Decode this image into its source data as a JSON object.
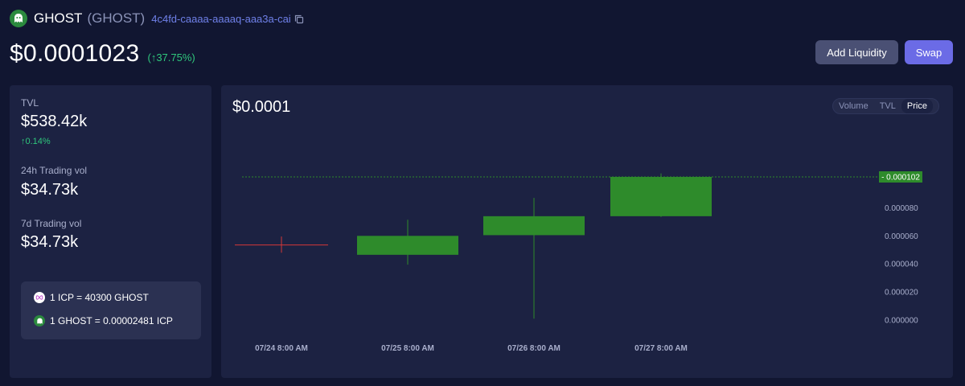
{
  "header": {
    "name": "GHOST",
    "symbol": "(GHOST)",
    "canister_id": "4c4fd-caaaa-aaaaq-aaa3a-cai",
    "logo_icon": "ghost-token-icon",
    "copy_icon": "copy-icon"
  },
  "price": {
    "value": "$0.0001023",
    "change": "(↑37.75%)"
  },
  "actions": {
    "add_liquidity": "Add Liquidity",
    "swap": "Swap"
  },
  "stats": {
    "tvl_label": "TVL",
    "tvl_value": "$538.42k",
    "tvl_change": "↑0.14%",
    "vol24_label": "24h Trading vol",
    "vol24_value": "$34.73k",
    "vol7_label": "7d Trading vol",
    "vol7_value": "$34.73k"
  },
  "rates": {
    "icp_rate": "1 ICP = 40300 GHOST",
    "ghost_rate": "1 GHOST = 0.00002481 ICP"
  },
  "chart_header": {
    "price": "$0.0001",
    "tabs": [
      "Volume",
      "TVL",
      "Price"
    ],
    "active_tab": "Price"
  },
  "colors": {
    "up": "#2e8b2b",
    "down": "#d33838",
    "accent": "#6b6be6"
  },
  "chart_data": {
    "type": "candlestick",
    "categories": [
      "07/24 8:00 AM",
      "07/25 8:00 AM",
      "07/26 8:00 AM",
      "07/27 8:00 AM"
    ],
    "candles": [
      {
        "x": "07/24 8:00 AM",
        "open": 5.35e-05,
        "close": 5.35e-05,
        "high": 5.95e-05,
        "low": 4.8e-05
      },
      {
        "x": "07/25 8:00 AM",
        "open": 4.65e-05,
        "close": 6e-05,
        "high": 7.15e-05,
        "low": 3.95e-05
      },
      {
        "x": "07/26 8:00 AM",
        "open": 6.05e-05,
        "close": 7.4e-05,
        "high": 8.7e-05,
        "low": 1e-06
      },
      {
        "x": "07/27 8:00 AM",
        "open": 7.4e-05,
        "close": 0.000102,
        "high": 0.0001045,
        "low": 7.35e-05
      }
    ],
    "current_price_label": "0.000102",
    "current_price": 0.000102,
    "y_ticks": [
      "0.000080",
      "0.000060",
      "0.000040",
      "0.000020",
      "0.000000"
    ],
    "y_tick_values": [
      8e-05,
      6e-05,
      4e-05,
      2e-05,
      0
    ],
    "ylim": [
      0,
      0.000102
    ]
  }
}
